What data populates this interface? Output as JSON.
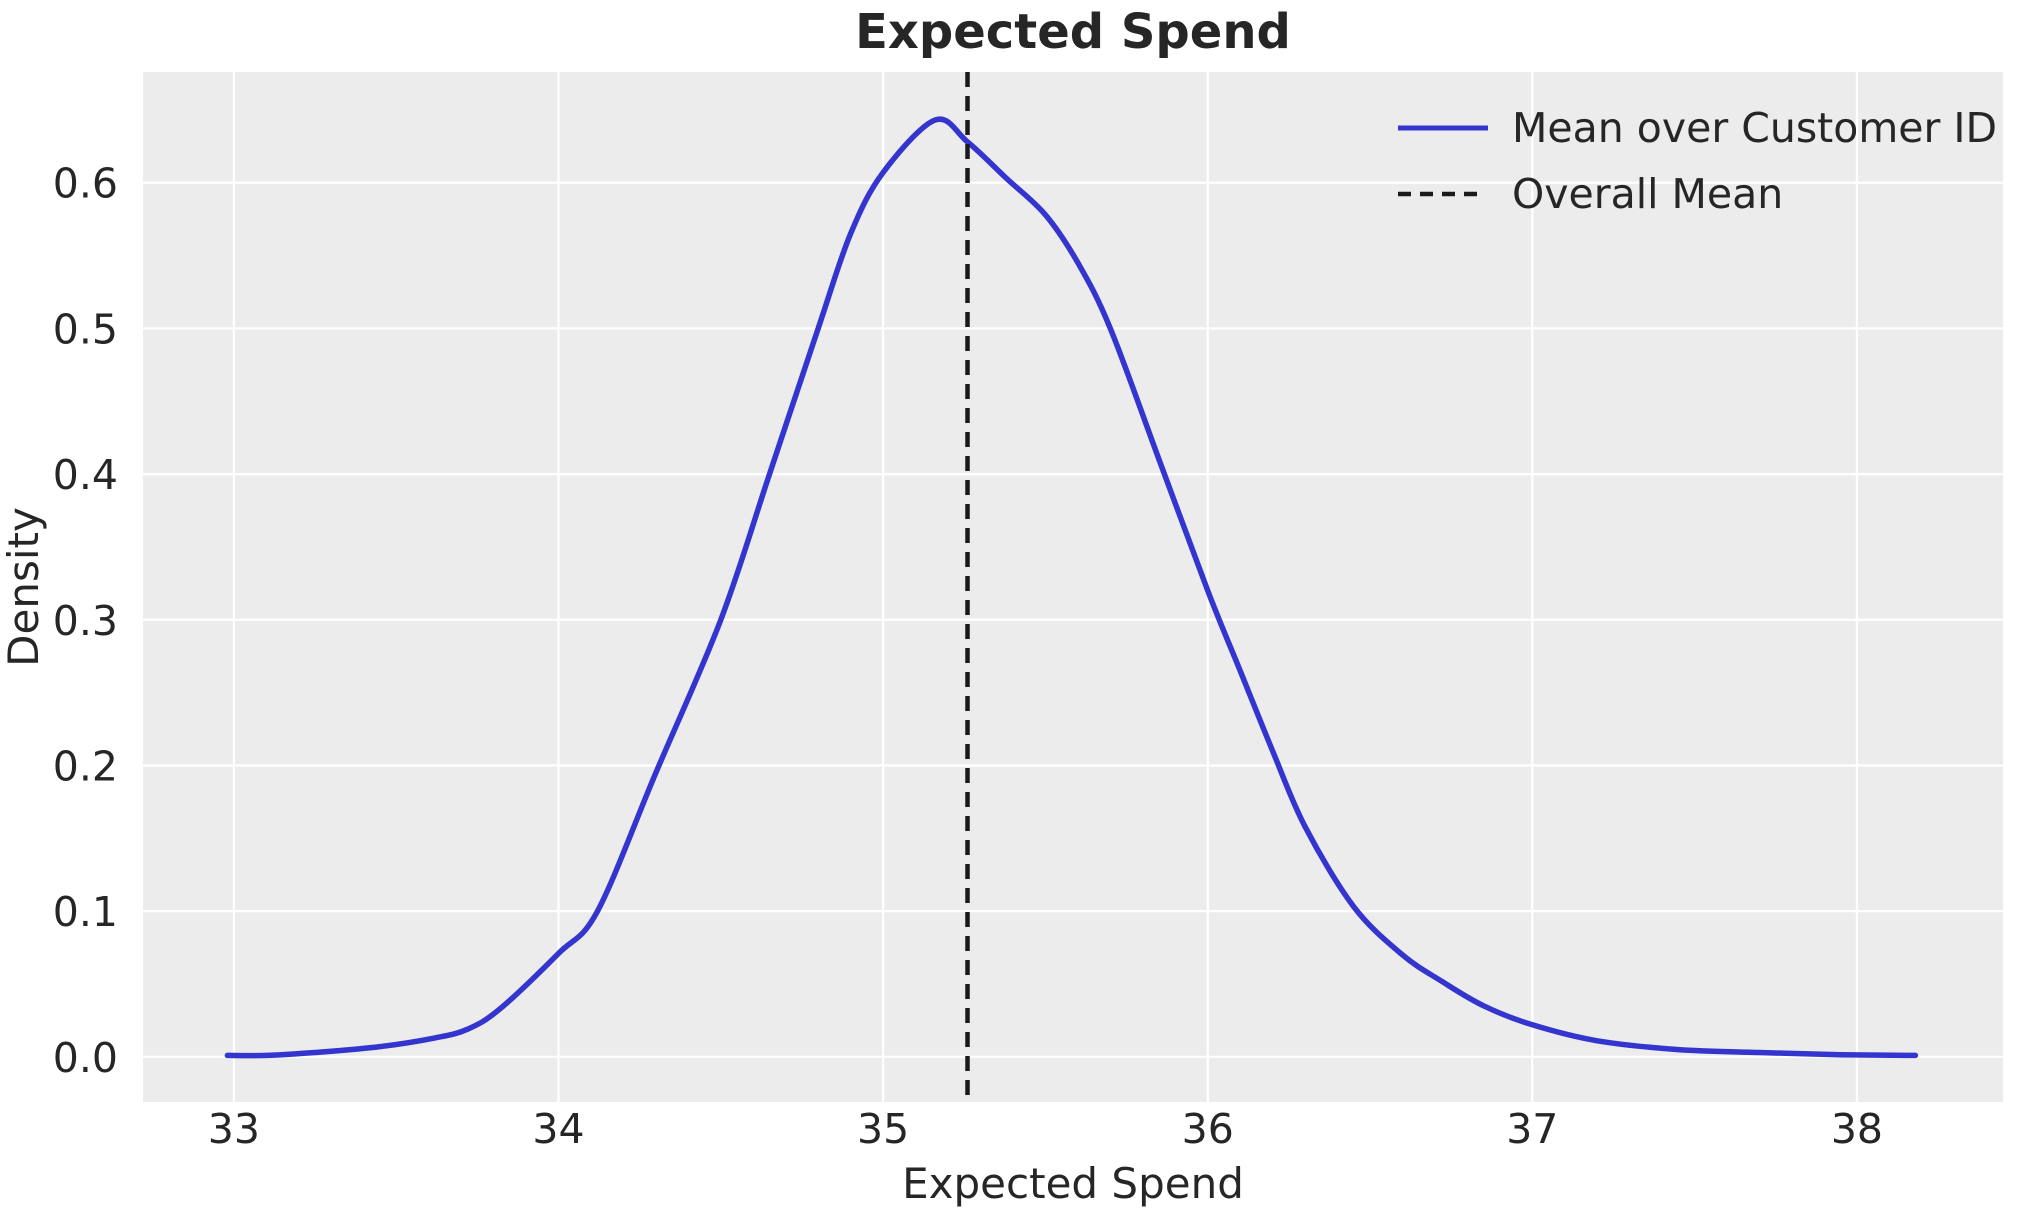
{
  "title": "Expected Spend",
  "axes": {
    "xlabel": "Expected Spend",
    "ylabel": "Density"
  },
  "legend": {
    "position": "upper right",
    "items": [
      {
        "label": "Mean over Customer ID",
        "line_style": "solid",
        "color": "#3434cf"
      },
      {
        "label": "Overall Mean",
        "line_style": "dashed",
        "color": "#1a1a1a"
      }
    ]
  },
  "colors": {
    "plot_background": "#ececec",
    "gridline": "#ffffff",
    "kde_line": "#3434cf",
    "mean_line": "#1a1a1a",
    "text": "#262626"
  },
  "chart_data": {
    "type": "line",
    "title": "Expected Spend",
    "xlabel": "Expected Spend",
    "ylabel": "Density",
    "xlim": [
      32.72,
      38.45
    ],
    "ylim": [
      -0.031,
      0.676
    ],
    "x_ticks": [
      33,
      34,
      35,
      36,
      37,
      38
    ],
    "x_tick_labels": [
      "33",
      "34",
      "35",
      "36",
      "37",
      "38"
    ],
    "y_ticks": [
      0.0,
      0.1,
      0.2,
      0.3,
      0.4,
      0.5,
      0.6
    ],
    "y_tick_labels": [
      "0.0",
      "0.1",
      "0.2",
      "0.3",
      "0.4",
      "0.5",
      "0.6"
    ],
    "grid": true,
    "legend_position": "upper right",
    "series": [
      {
        "name": "Mean over Customer ID",
        "kind": "kde-line",
        "style": "solid",
        "color": "#3434cf",
        "points": [
          [
            32.98,
            0.001
          ],
          [
            33.1,
            0.001
          ],
          [
            33.25,
            0.003
          ],
          [
            33.45,
            0.007
          ],
          [
            33.62,
            0.013
          ],
          [
            33.72,
            0.019
          ],
          [
            33.82,
            0.033
          ],
          [
            34.0,
            0.071
          ],
          [
            34.12,
            0.1
          ],
          [
            34.3,
            0.195
          ],
          [
            34.5,
            0.3
          ],
          [
            34.65,
            0.4
          ],
          [
            34.8,
            0.5
          ],
          [
            34.9,
            0.565
          ],
          [
            35.0,
            0.607
          ],
          [
            35.16,
            0.643
          ],
          [
            35.26,
            0.628
          ],
          [
            35.38,
            0.603
          ],
          [
            35.5,
            0.578
          ],
          [
            35.6,
            0.545
          ],
          [
            35.7,
            0.5
          ],
          [
            35.85,
            0.41
          ],
          [
            36.0,
            0.32
          ],
          [
            36.1,
            0.265
          ],
          [
            36.2,
            0.21
          ],
          [
            36.3,
            0.158
          ],
          [
            36.45,
            0.103
          ],
          [
            36.6,
            0.07
          ],
          [
            36.72,
            0.052
          ],
          [
            36.85,
            0.035
          ],
          [
            37.0,
            0.022
          ],
          [
            37.2,
            0.011
          ],
          [
            37.45,
            0.005
          ],
          [
            37.7,
            0.003
          ],
          [
            37.95,
            0.0015
          ],
          [
            38.18,
            0.001
          ]
        ]
      },
      {
        "name": "Overall Mean",
        "kind": "vline",
        "style": "dashed",
        "color": "#1a1a1a",
        "x": 35.26
      }
    ]
  }
}
